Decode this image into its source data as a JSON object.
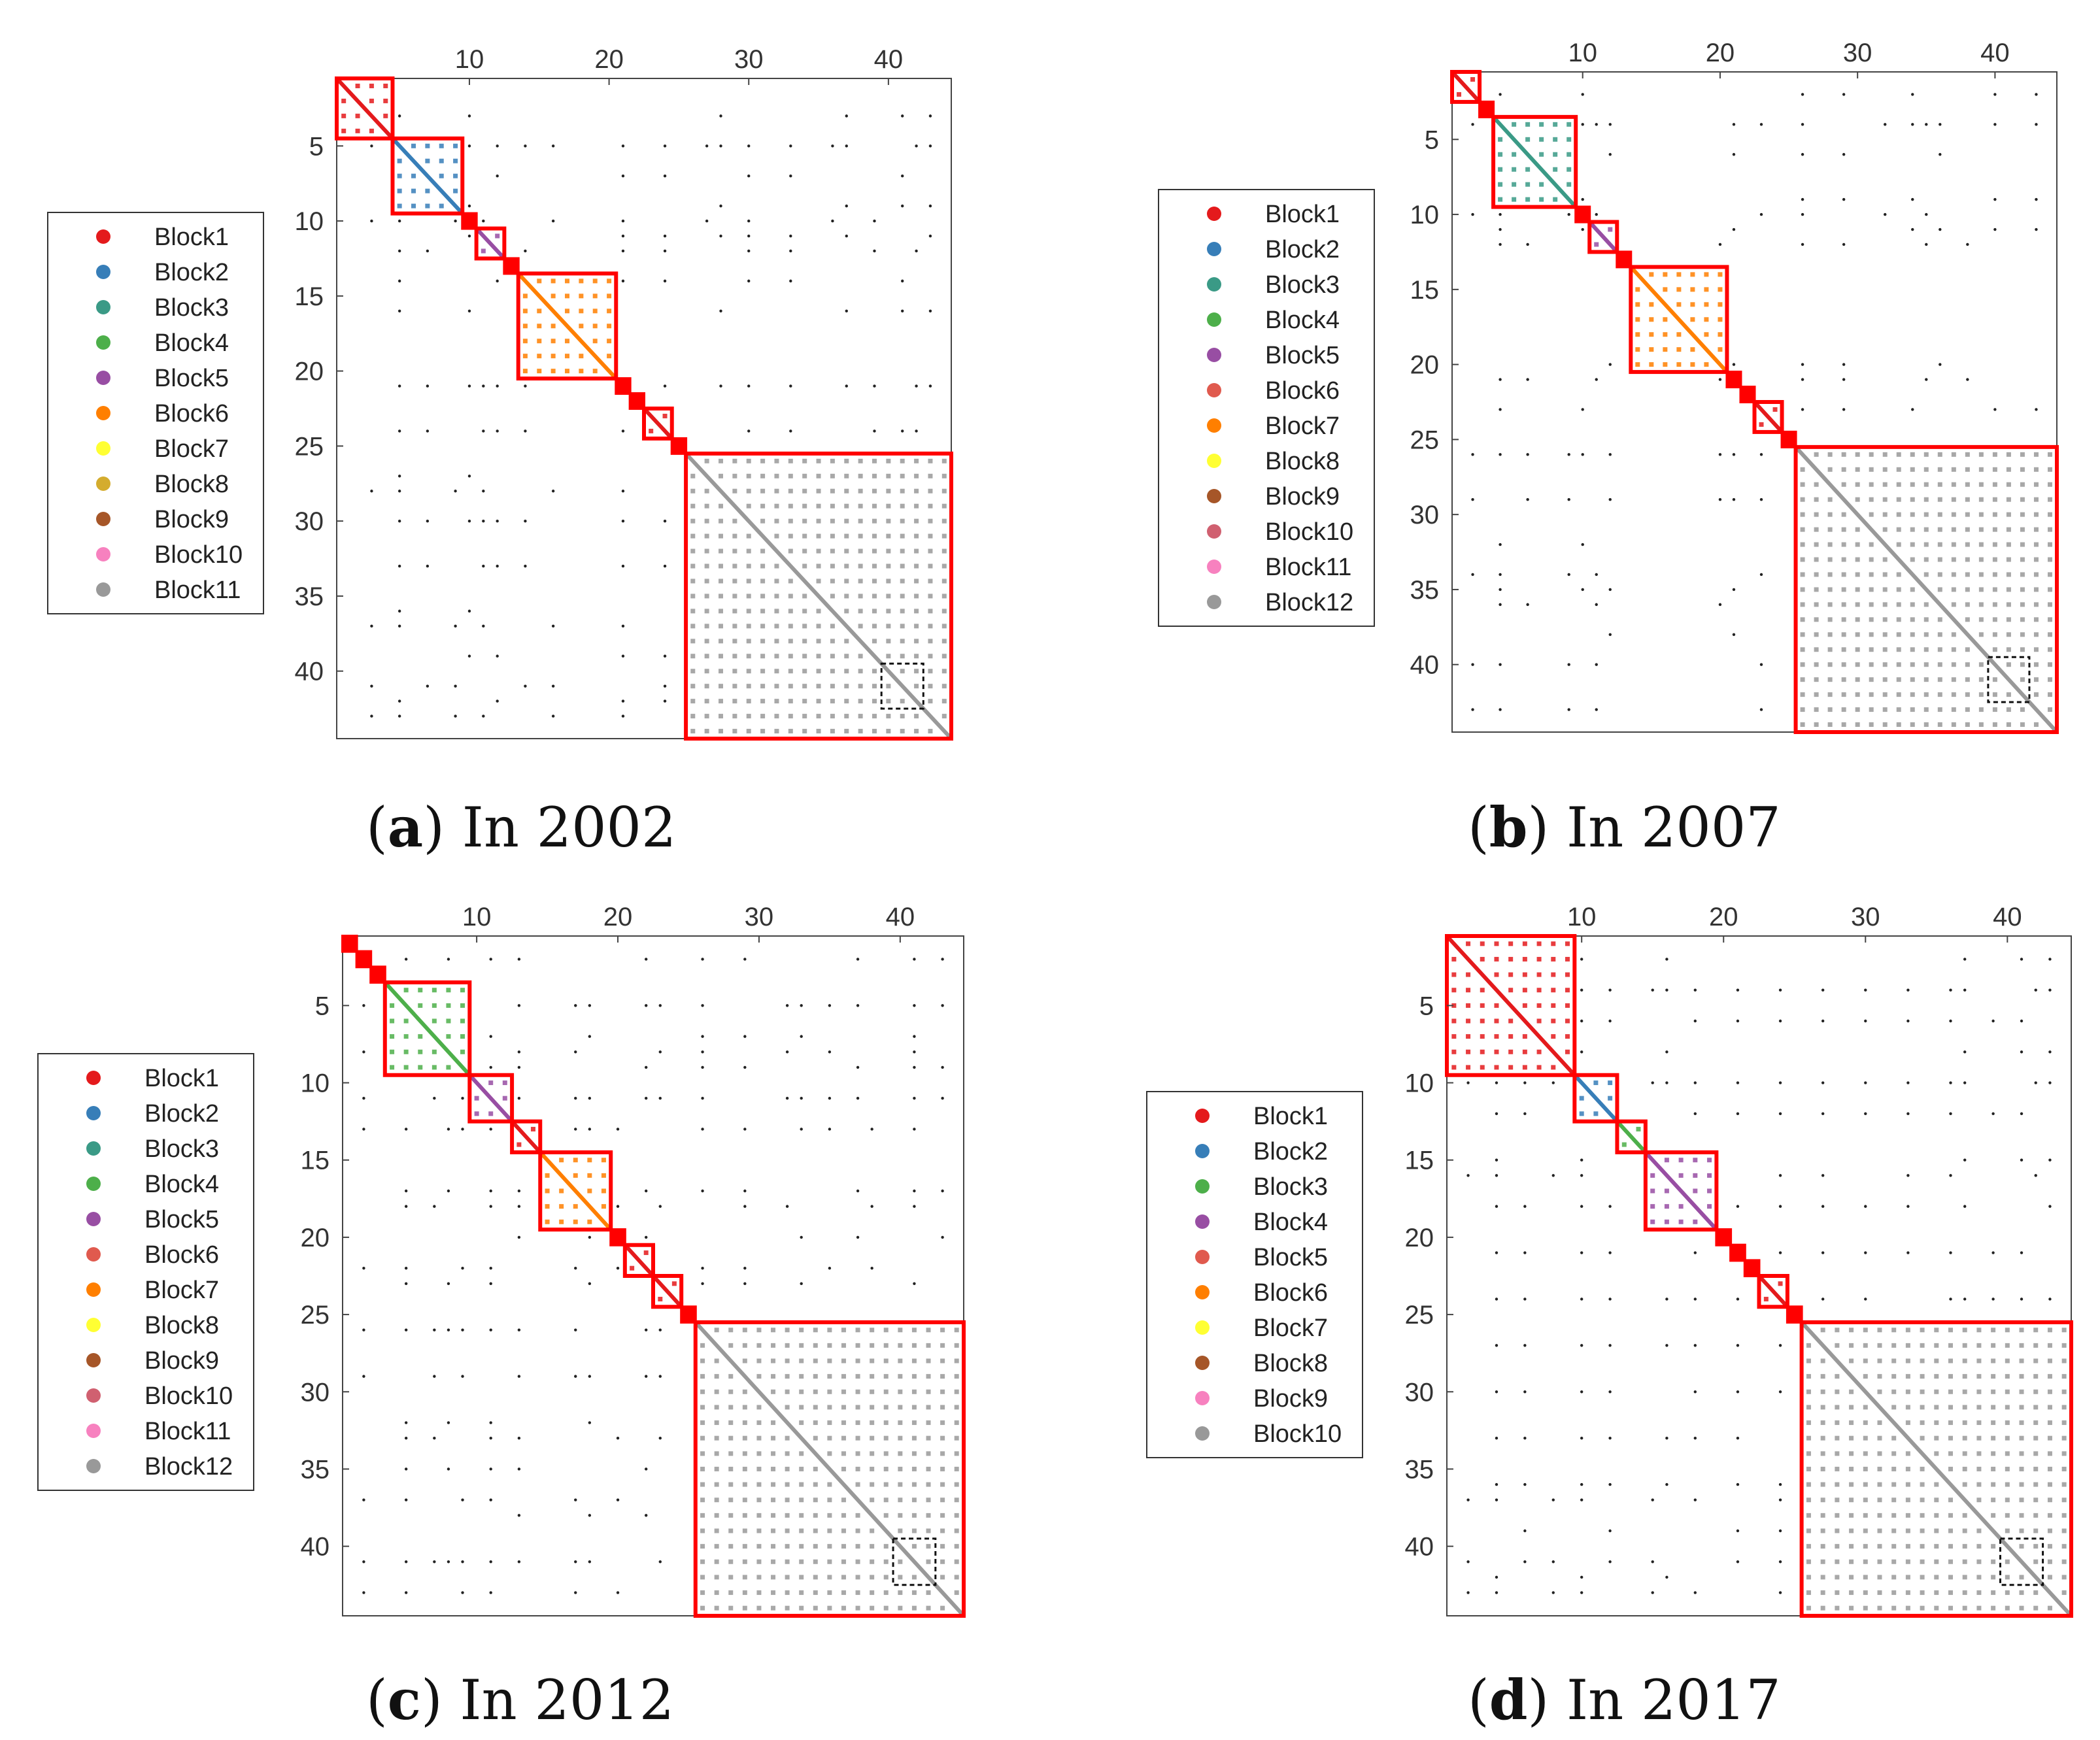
{
  "chart_data": [
    {
      "type": "heatmap",
      "panel_letter": "a",
      "caption": ") In 2002",
      "n": 44,
      "xticks": [
        10,
        20,
        30,
        40
      ],
      "yticks": [
        5,
        10,
        15,
        20,
        25,
        30,
        35,
        40
      ],
      "legend": [
        {
          "label": "Block1",
          "color": "#e41a1c"
        },
        {
          "label": "Block2",
          "color": "#377eb8"
        },
        {
          "label": "Block3",
          "color": "#3a9a86"
        },
        {
          "label": "Block4",
          "color": "#4daf4a"
        },
        {
          "label": "Block5",
          "color": "#984ea3"
        },
        {
          "label": "Block6",
          "color": "#ff7f00"
        },
        {
          "label": "Block7",
          "color": "#ffff33"
        },
        {
          "label": "Block8",
          "color": "#d4ac2e"
        },
        {
          "label": "Block9",
          "color": "#a65628"
        },
        {
          "label": "Block10",
          "color": "#f781bf"
        },
        {
          "label": "Block11",
          "color": "#999999"
        }
      ],
      "blocks": [
        {
          "start": 1,
          "end": 4,
          "color": "#e41a1c"
        },
        {
          "start": 5,
          "end": 9,
          "color": "#377eb8"
        },
        {
          "start": 10,
          "end": 10,
          "color": "#e41a1c"
        },
        {
          "start": 11,
          "end": 12,
          "color": "#984ea3"
        },
        {
          "start": 13,
          "end": 13,
          "color": "#e41a1c"
        },
        {
          "start": 14,
          "end": 20,
          "color": "#ff7f00"
        },
        {
          "start": 21,
          "end": 21,
          "color": "#e41a1c"
        },
        {
          "start": 22,
          "end": 22,
          "color": "#e41a1c"
        },
        {
          "start": 23,
          "end": 24,
          "color": "#e41a1c"
        },
        {
          "start": 25,
          "end": 25,
          "color": "#e41a1c"
        },
        {
          "start": 26,
          "end": 44,
          "color": "#999999"
        }
      ],
      "sparse_cols": [
        3,
        5,
        7,
        9,
        11,
        14,
        16,
        21,
        24,
        27,
        30,
        33,
        36,
        39,
        42
      ],
      "sparse_rows": [
        5,
        10,
        12,
        21,
        24,
        28,
        30,
        33,
        37,
        41,
        43
      ],
      "dashed_box": {
        "start": 40,
        "end": 42
      }
    },
    {
      "type": "heatmap",
      "panel_letter": "b",
      "caption": ") In 2007",
      "n": 44,
      "xticks": [
        10,
        20,
        30,
        40
      ],
      "yticks": [
        5,
        10,
        15,
        20,
        25,
        30,
        35,
        40
      ],
      "legend": [
        {
          "label": "Block1",
          "color": "#e41a1c"
        },
        {
          "label": "Block2",
          "color": "#377eb8"
        },
        {
          "label": "Block3",
          "color": "#3a9a86"
        },
        {
          "label": "Block4",
          "color": "#4daf4a"
        },
        {
          "label": "Block5",
          "color": "#984ea3"
        },
        {
          "label": "Block6",
          "color": "#e05a4e"
        },
        {
          "label": "Block7",
          "color": "#ff7f00"
        },
        {
          "label": "Block8",
          "color": "#ffff33"
        },
        {
          "label": "Block9",
          "color": "#a65628"
        },
        {
          "label": "Block10",
          "color": "#d06070"
        },
        {
          "label": "Block11",
          "color": "#f781bf"
        },
        {
          "label": "Block12",
          "color": "#999999"
        }
      ],
      "blocks": [
        {
          "start": 1,
          "end": 2,
          "color": "#e41a1c"
        },
        {
          "start": 3,
          "end": 3,
          "color": "#e41a1c"
        },
        {
          "start": 4,
          "end": 9,
          "color": "#3a9a86"
        },
        {
          "start": 10,
          "end": 10,
          "color": "#e41a1c"
        },
        {
          "start": 11,
          "end": 12,
          "color": "#984ea3"
        },
        {
          "start": 13,
          "end": 13,
          "color": "#e41a1c"
        },
        {
          "start": 14,
          "end": 20,
          "color": "#ff7f00"
        },
        {
          "start": 21,
          "end": 21,
          "color": "#e41a1c"
        },
        {
          "start": 22,
          "end": 22,
          "color": "#e41a1c"
        },
        {
          "start": 23,
          "end": 24,
          "color": "#e41a1c"
        },
        {
          "start": 25,
          "end": 25,
          "color": "#e41a1c"
        },
        {
          "start": 26,
          "end": 44,
          "color": "#999999"
        }
      ],
      "sparse_cols": [
        2,
        4,
        6,
        9,
        11,
        20,
        23,
        26,
        29,
        32,
        35,
        38
      ],
      "sparse_rows": [
        4,
        10,
        12,
        21,
        26,
        29,
        34,
        36,
        40,
        43
      ],
      "dashed_box": {
        "start": 40,
        "end": 42
      }
    },
    {
      "type": "heatmap",
      "panel_letter": "c",
      "caption": ") In 2012",
      "n": 44,
      "xticks": [
        10,
        20,
        30,
        40
      ],
      "yticks": [
        5,
        10,
        15,
        20,
        25,
        30,
        35,
        40
      ],
      "legend": [
        {
          "label": "Block1",
          "color": "#e41a1c"
        },
        {
          "label": "Block2",
          "color": "#377eb8"
        },
        {
          "label": "Block3",
          "color": "#3a9a86"
        },
        {
          "label": "Block4",
          "color": "#4daf4a"
        },
        {
          "label": "Block5",
          "color": "#984ea3"
        },
        {
          "label": "Block6",
          "color": "#e05a4e"
        },
        {
          "label": "Block7",
          "color": "#ff7f00"
        },
        {
          "label": "Block8",
          "color": "#ffff33"
        },
        {
          "label": "Block9",
          "color": "#a65628"
        },
        {
          "label": "Block10",
          "color": "#d06070"
        },
        {
          "label": "Block11",
          "color": "#f781bf"
        },
        {
          "label": "Block12",
          "color": "#999999"
        }
      ],
      "blocks": [
        {
          "start": 1,
          "end": 1,
          "color": "#e41a1c"
        },
        {
          "start": 2,
          "end": 2,
          "color": "#e41a1c"
        },
        {
          "start": 3,
          "end": 3,
          "color": "#e41a1c"
        },
        {
          "start": 4,
          "end": 9,
          "color": "#4daf4a"
        },
        {
          "start": 10,
          "end": 12,
          "color": "#984ea3"
        },
        {
          "start": 13,
          "end": 14,
          "color": "#e41a1c"
        },
        {
          "start": 15,
          "end": 19,
          "color": "#ff7f00"
        },
        {
          "start": 20,
          "end": 20,
          "color": "#e41a1c"
        },
        {
          "start": 21,
          "end": 22,
          "color": "#e41a1c"
        },
        {
          "start": 23,
          "end": 24,
          "color": "#e41a1c"
        },
        {
          "start": 25,
          "end": 25,
          "color": "#e41a1c"
        },
        {
          "start": 26,
          "end": 44,
          "color": "#999999"
        }
      ],
      "sparse_cols": [
        2,
        5,
        7,
        9,
        11,
        13,
        17,
        20,
        23,
        26,
        29,
        32,
        35,
        38,
        41
      ],
      "sparse_rows": [
        5,
        8,
        11,
        13,
        18,
        22,
        26,
        29,
        33,
        37,
        41,
        43
      ],
      "dashed_box": {
        "start": 40,
        "end": 42
      }
    },
    {
      "type": "heatmap",
      "panel_letter": "d",
      "caption": ") In 2017",
      "n": 44,
      "xticks": [
        10,
        20,
        30,
        40
      ],
      "yticks": [
        5,
        10,
        15,
        20,
        25,
        30,
        35,
        40
      ],
      "legend": [
        {
          "label": "Block1",
          "color": "#e41a1c"
        },
        {
          "label": "Block2",
          "color": "#377eb8"
        },
        {
          "label": "Block3",
          "color": "#4daf4a"
        },
        {
          "label": "Block4",
          "color": "#984ea3"
        },
        {
          "label": "Block5",
          "color": "#e05a4e"
        },
        {
          "label": "Block6",
          "color": "#ff7f00"
        },
        {
          "label": "Block7",
          "color": "#ffff33"
        },
        {
          "label": "Block8",
          "color": "#a65628"
        },
        {
          "label": "Block9",
          "color": "#f781bf"
        },
        {
          "label": "Block10",
          "color": "#999999"
        }
      ],
      "blocks": [
        {
          "start": 1,
          "end": 9,
          "color": "#e41a1c"
        },
        {
          "start": 10,
          "end": 12,
          "color": "#377eb8"
        },
        {
          "start": 13,
          "end": 14,
          "color": "#4daf4a"
        },
        {
          "start": 15,
          "end": 19,
          "color": "#984ea3"
        },
        {
          "start": 20,
          "end": 20,
          "color": "#e41a1c"
        },
        {
          "start": 21,
          "end": 21,
          "color": "#e41a1c"
        },
        {
          "start": 22,
          "end": 22,
          "color": "#e41a1c"
        },
        {
          "start": 23,
          "end": 24,
          "color": "#e41a1c"
        },
        {
          "start": 25,
          "end": 25,
          "color": "#e41a1c"
        },
        {
          "start": 26,
          "end": 44,
          "color": "#999999"
        }
      ],
      "sparse_cols": [
        2,
        4,
        6,
        8,
        10,
        12,
        15,
        18,
        21,
        24,
        27,
        30,
        33,
        36,
        39,
        42
      ],
      "sparse_rows": [
        4,
        6,
        10,
        12,
        16,
        21,
        24,
        27,
        30,
        33,
        37,
        41,
        43
      ],
      "dashed_box": {
        "start": 40,
        "end": 42
      }
    }
  ]
}
